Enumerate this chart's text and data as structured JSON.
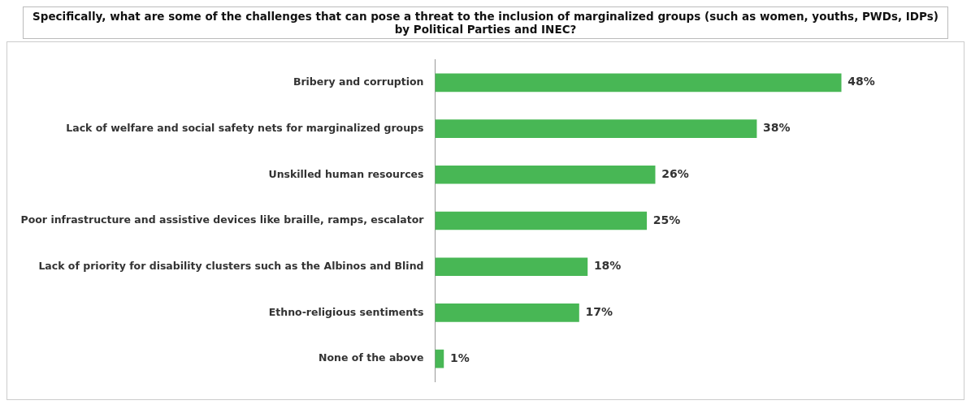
{
  "chart_data": {
    "type": "bar",
    "orientation": "horizontal",
    "title": "Specifically,  what are some of the challenges that can pose a threat to the inclusion of  marginalized groups (such as women, youths, PWDs, IDPs) by Political Parties and INEC?",
    "categories": [
      "Bribery and corruption",
      "Lack of welfare and social safety nets for marginalized groups",
      "Unskilled human resources",
      "Poor infrastructure and assistive devices like braille, ramps, escalator",
      "Lack of priority for disability clusters such as the Albinos and Blind",
      "Ethno-religious sentiments",
      "None of the above"
    ],
    "values": [
      48,
      38,
      26,
      25,
      18,
      17,
      1
    ],
    "value_labels": [
      "48%",
      "38%",
      "26%",
      "25%",
      "18%",
      "17%",
      "1%"
    ],
    "color": "#48b755",
    "tick_labels": "y",
    "grid": false,
    "legend": false
  }
}
